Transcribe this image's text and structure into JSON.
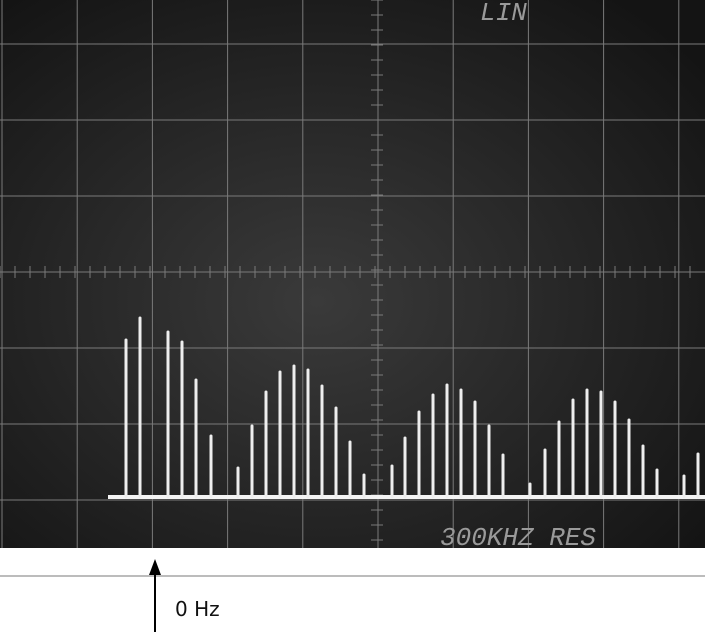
{
  "screen": {
    "mode_label": "LIN",
    "resolution_label": "300KHZ RES"
  },
  "annotation": {
    "label": "0 Hz"
  }
}
